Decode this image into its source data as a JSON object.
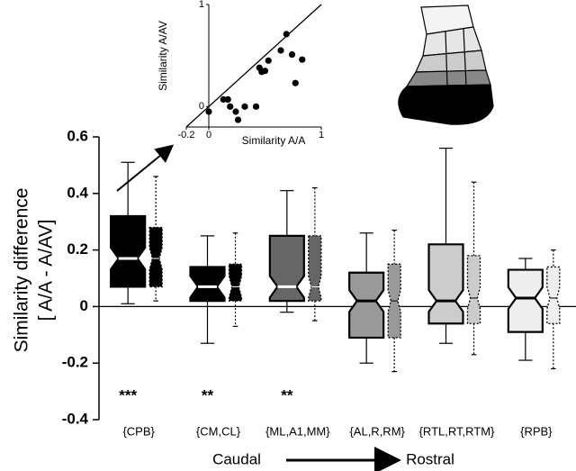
{
  "chart_data": [
    {
      "type": "box",
      "ylabel": [
        "Similarity difference",
        "[ A/A - A/AV]"
      ],
      "categories": [
        "{CPB}",
        "{CM,CL}",
        "{ML,A1,MM}",
        "{AL,R,RM}",
        "{RTL,RT,RTM}",
        "{RPB}"
      ],
      "colors": [
        "#000000",
        "#000000",
        "#666666",
        "#999999",
        "#cccccc",
        "#eeeeee"
      ],
      "series": [
        {
          "style": "solid",
          "values": [
            {
              "whislo": 0.01,
              "q1": 0.07,
              "med": 0.17,
              "q3": 0.32,
              "whishi": 0.51
            },
            {
              "whislo": -0.13,
              "q1": 0.02,
              "med": 0.07,
              "q3": 0.14,
              "whishi": 0.25
            },
            {
              "whislo": -0.02,
              "q1": 0.02,
              "med": 0.07,
              "q3": 0.25,
              "whishi": 0.41
            },
            {
              "whislo": -0.2,
              "q1": -0.11,
              "med": 0.02,
              "q3": 0.12,
              "whishi": 0.26
            },
            {
              "whislo": -0.13,
              "q1": -0.06,
              "med": 0.02,
              "q3": 0.22,
              "whishi": 0.56
            },
            {
              "whislo": -0.19,
              "q1": -0.09,
              "med": 0.03,
              "q3": 0.13,
              "whishi": 0.17
            }
          ]
        },
        {
          "style": "dotted",
          "values": [
            {
              "whislo": 0.02,
              "q1": 0.07,
              "med": 0.17,
              "q3": 0.28,
              "whishi": 0.46
            },
            {
              "whislo": -0.07,
              "q1": 0.02,
              "med": 0.07,
              "q3": 0.15,
              "whishi": 0.26
            },
            {
              "whislo": -0.05,
              "q1": 0.02,
              "med": 0.07,
              "q3": 0.25,
              "whishi": 0.42
            },
            {
              "whislo": -0.23,
              "q1": -0.11,
              "med": 0.02,
              "q3": 0.15,
              "whishi": 0.27
            },
            {
              "whislo": -0.17,
              "q1": -0.06,
              "med": 0.03,
              "q3": 0.18,
              "whishi": 0.44
            },
            {
              "whislo": -0.22,
              "q1": -0.06,
              "med": 0.03,
              "q3": 0.14,
              "whishi": 0.2
            }
          ]
        }
      ],
      "significance": [
        "***",
        "**",
        "**",
        null,
        null,
        null
      ],
      "direction": [
        "Caudal",
        "Rostral"
      ],
      "ylim": [
        -0.4,
        0.6
      ],
      "yticks": [
        -0.4,
        -0.2,
        0,
        0.2,
        0.4,
        0.6
      ],
      "zero_line": true
    },
    {
      "type": "scatter",
      "xlabel": "Similarity A/A",
      "ylabel": "Similarity A/AV",
      "x": [
        0,
        0.13,
        0.17,
        0.19,
        0.24,
        0.26,
        0.32,
        0.42,
        0.45,
        0.47,
        0.5,
        0.53,
        0.64,
        0.69,
        0.74,
        0.77,
        0.83
      ],
      "y": [
        -0.05,
        0.07,
        0.07,
        0,
        -0.05,
        -0.13,
        0,
        0,
        0.38,
        0.34,
        0.35,
        0.45,
        0.55,
        0.71,
        0.51,
        0.23,
        0.46
      ],
      "color": "#000000",
      "xlim": [
        -0.2,
        1
      ],
      "xticks": [
        -0.2,
        0,
        1
      ],
      "ylim": [
        -0.2,
        1
      ],
      "yticks": [
        0,
        1
      ],
      "identity_line": true
    }
  ]
}
